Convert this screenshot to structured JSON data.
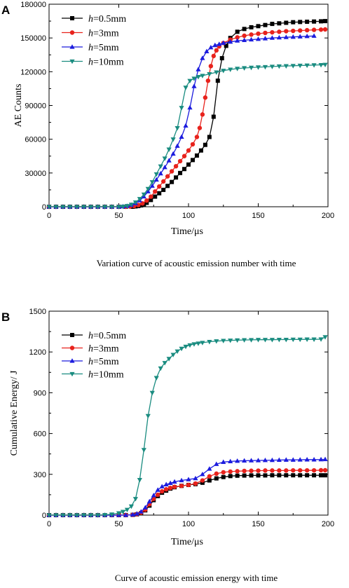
{
  "chart_data": [
    {
      "panel": "A",
      "type": "line",
      "caption": "Variation curve of acoustic emission number with time",
      "xlabel": "Time/μs",
      "ylabel": "AE Counts",
      "xlim": [
        0,
        200
      ],
      "ylim": [
        0,
        180000
      ],
      "xticks": [
        0,
        50,
        100,
        150,
        200
      ],
      "yticks": [
        0,
        30000,
        60000,
        90000,
        120000,
        150000,
        180000
      ],
      "legend_position": "top-left",
      "grid": false,
      "series": [
        {
          "name_italic": "h",
          "name_rest": "=0.5mm",
          "color": "#000000",
          "marker": "square",
          "x": [
            0,
            5,
            10,
            15,
            20,
            25,
            30,
            35,
            40,
            45,
            50,
            55,
            60,
            62,
            64,
            66,
            68,
            70,
            73,
            76,
            79,
            82,
            85,
            88,
            91,
            94,
            97,
            100,
            103,
            106,
            109,
            112,
            115,
            118,
            121,
            124,
            127,
            130,
            135,
            140,
            145,
            150,
            155,
            160,
            165,
            170,
            175,
            180,
            185,
            190,
            195,
            198
          ],
          "y": [
            0,
            0,
            0,
            0,
            0,
            0,
            0,
            0,
            0,
            0,
            0,
            0,
            0,
            300,
            600,
            1200,
            2200,
            3500,
            6000,
            9000,
            12000,
            15000,
            18500,
            22000,
            26000,
            30000,
            33500,
            37500,
            41500,
            45500,
            50000,
            55000,
            62000,
            80000,
            112000,
            132000,
            143000,
            150000,
            155500,
            158000,
            159500,
            160500,
            161500,
            162500,
            163000,
            163500,
            164000,
            164200,
            164400,
            164600,
            164800,
            165000
          ]
        },
        {
          "name_italic": "h",
          "name_rest": "=3mm",
          "color": "#e8221c",
          "marker": "circle",
          "x": [
            0,
            5,
            10,
            15,
            20,
            25,
            30,
            35,
            40,
            45,
            50,
            55,
            58,
            61,
            64,
            67,
            70,
            73,
            76,
            79,
            82,
            85,
            88,
            91,
            94,
            97,
            100,
            103,
            106,
            108,
            110,
            112,
            114,
            116,
            118,
            120,
            122,
            125,
            130,
            135,
            140,
            145,
            150,
            155,
            160,
            165,
            170,
            175,
            180,
            185,
            190,
            195,
            198
          ],
          "y": [
            0,
            0,
            0,
            0,
            0,
            0,
            0,
            0,
            0,
            0,
            0,
            0,
            200,
            600,
            1500,
            3000,
            5500,
            9000,
            13500,
            18000,
            22500,
            27000,
            31500,
            36000,
            40500,
            45000,
            50000,
            55500,
            62000,
            70000,
            82000,
            97000,
            112000,
            125000,
            134000,
            139000,
            142500,
            145500,
            148500,
            150500,
            152000,
            153000,
            153800,
            154500,
            155000,
            155500,
            156000,
            156300,
            156600,
            156900,
            157200,
            157400,
            157600
          ]
        },
        {
          "name_italic": "h",
          "name_rest": "=5mm",
          "color": "#1c1cde",
          "marker": "triangle-up",
          "x": [
            0,
            5,
            10,
            15,
            20,
            25,
            30,
            35,
            40,
            45,
            50,
            53,
            56,
            59,
            62,
            65,
            68,
            71,
            74,
            77,
            80,
            83,
            86,
            89,
            92,
            95,
            98,
            101,
            104,
            107,
            110,
            113,
            116,
            119,
            122,
            125,
            130,
            135,
            140,
            145,
            150,
            155,
            160,
            165,
            170,
            175,
            180,
            185,
            190
          ],
          "y": [
            0,
            0,
            0,
            0,
            0,
            0,
            0,
            0,
            0,
            0,
            0,
            200,
            600,
            1500,
            3000,
            5500,
            9000,
            13500,
            18500,
            24000,
            29500,
            35000,
            41000,
            47000,
            54000,
            62000,
            72000,
            88000,
            107000,
            122000,
            132000,
            138000,
            141500,
            143500,
            144500,
            145500,
            146500,
            147500,
            148000,
            148500,
            149000,
            149500,
            150000,
            150300,
            150600,
            150900,
            151200,
            151500,
            151800
          ]
        },
        {
          "name_italic": "h",
          "name_rest": "=10mm",
          "color": "#1a8c80",
          "marker": "triangle-down",
          "x": [
            0,
            5,
            10,
            15,
            20,
            25,
            30,
            35,
            40,
            45,
            50,
            53,
            56,
            59,
            62,
            65,
            68,
            71,
            74,
            77,
            80,
            83,
            86,
            89,
            92,
            95,
            98,
            101,
            104,
            107,
            110,
            115,
            120,
            125,
            130,
            135,
            140,
            145,
            150,
            155,
            160,
            165,
            170,
            175,
            180,
            185,
            190,
            195,
            198
          ],
          "y": [
            0,
            0,
            0,
            0,
            0,
            0,
            0,
            0,
            0,
            0,
            0,
            200,
            800,
            2000,
            4000,
            7000,
            11000,
            16000,
            22000,
            29000,
            36000,
            43000,
            51000,
            60000,
            70000,
            88000,
            106000,
            112000,
            114000,
            115500,
            116500,
            118000,
            119500,
            121000,
            122000,
            122800,
            123300,
            123700,
            124000,
            124300,
            124600,
            124900,
            125100,
            125300,
            125500,
            125700,
            125900,
            126100,
            126300
          ]
        }
      ]
    },
    {
      "panel": "B",
      "type": "line",
      "caption": "Curve of acoustic emission energy with time",
      "xlabel": "Time/μs",
      "ylabel": "Cumulative Energy/ J",
      "xlim": [
        0,
        200
      ],
      "ylim": [
        0,
        1500
      ],
      "xticks": [
        0,
        50,
        100,
        150,
        200
      ],
      "yticks": [
        0,
        300,
        600,
        900,
        1200,
        1500
      ],
      "legend_position": "top-left",
      "grid": false,
      "series": [
        {
          "name_italic": "h",
          "name_rest": "=0.5mm",
          "color": "#000000",
          "marker": "square",
          "x": [
            0,
            5,
            10,
            15,
            20,
            25,
            30,
            35,
            40,
            45,
            50,
            55,
            60,
            63,
            66,
            69,
            72,
            75,
            78,
            81,
            84,
            87,
            90,
            95,
            100,
            105,
            110,
            115,
            120,
            125,
            130,
            135,
            140,
            145,
            150,
            155,
            160,
            165,
            170,
            175,
            180,
            185,
            190,
            195,
            198
          ],
          "y": [
            0,
            0,
            0,
            0,
            0,
            0,
            0,
            0,
            0,
            0,
            0,
            0,
            2,
            6,
            15,
            35,
            70,
            110,
            140,
            165,
            180,
            195,
            205,
            215,
            222,
            228,
            238,
            255,
            270,
            280,
            287,
            290,
            291,
            292,
            292,
            292,
            293,
            293,
            293,
            293,
            293,
            293,
            293,
            293,
            293
          ]
        },
        {
          "name_italic": "h",
          "name_rest": "=3mm",
          "color": "#e8221c",
          "marker": "circle",
          "x": [
            0,
            5,
            10,
            15,
            20,
            25,
            30,
            35,
            40,
            45,
            50,
            55,
            60,
            63,
            66,
            69,
            72,
            75,
            78,
            81,
            84,
            87,
            90,
            95,
            100,
            105,
            110,
            115,
            120,
            125,
            130,
            135,
            140,
            145,
            150,
            155,
            160,
            165,
            170,
            175,
            180,
            185,
            190,
            195,
            198
          ],
          "y": [
            0,
            0,
            0,
            0,
            0,
            0,
            0,
            0,
            0,
            0,
            0,
            0,
            2,
            7,
            18,
            40,
            80,
            120,
            150,
            175,
            190,
            200,
            208,
            215,
            222,
            232,
            255,
            285,
            305,
            315,
            320,
            323,
            325,
            326,
            327,
            328,
            328,
            328,
            328,
            329,
            329,
            329,
            329,
            330,
            330
          ]
        },
        {
          "name_italic": "h",
          "name_rest": "=5mm",
          "color": "#1c1cde",
          "marker": "triangle-up",
          "x": [
            0,
            5,
            10,
            15,
            20,
            25,
            30,
            35,
            40,
            45,
            50,
            55,
            60,
            63,
            66,
            69,
            72,
            75,
            78,
            81,
            84,
            87,
            90,
            95,
            100,
            105,
            110,
            115,
            120,
            125,
            130,
            135,
            140,
            145,
            150,
            155,
            160,
            165,
            170,
            175,
            180,
            185,
            190,
            195,
            198
          ],
          "y": [
            0,
            0,
            0,
            0,
            0,
            0,
            0,
            0,
            0,
            0,
            0,
            0,
            3,
            10,
            25,
            55,
            100,
            145,
            185,
            210,
            225,
            235,
            245,
            255,
            262,
            270,
            300,
            340,
            375,
            390,
            395,
            398,
            400,
            401,
            402,
            403,
            404,
            405,
            406,
            406,
            407,
            408,
            408,
            409,
            410
          ]
        },
        {
          "name_italic": "h",
          "name_rest": "=10mm",
          "color": "#1a8c80",
          "marker": "triangle-down",
          "x": [
            0,
            5,
            10,
            15,
            20,
            25,
            30,
            35,
            40,
            45,
            50,
            53,
            56,
            59,
            62,
            65,
            68,
            71,
            74,
            77,
            80,
            83,
            86,
            89,
            92,
            95,
            98,
            101,
            104,
            107,
            110,
            115,
            120,
            125,
            130,
            135,
            140,
            145,
            150,
            155,
            160,
            165,
            170,
            175,
            180,
            185,
            190,
            195,
            198
          ],
          "y": [
            0,
            0,
            0,
            0,
            0,
            0,
            0,
            0,
            2,
            6,
            15,
            25,
            40,
            65,
            120,
            260,
            480,
            730,
            900,
            1010,
            1080,
            1120,
            1150,
            1180,
            1205,
            1225,
            1240,
            1250,
            1258,
            1263,
            1268,
            1275,
            1280,
            1283,
            1285,
            1287,
            1288,
            1289,
            1290,
            1290,
            1290,
            1291,
            1291,
            1292,
            1292,
            1293,
            1293,
            1294,
            1310
          ]
        }
      ]
    }
  ]
}
